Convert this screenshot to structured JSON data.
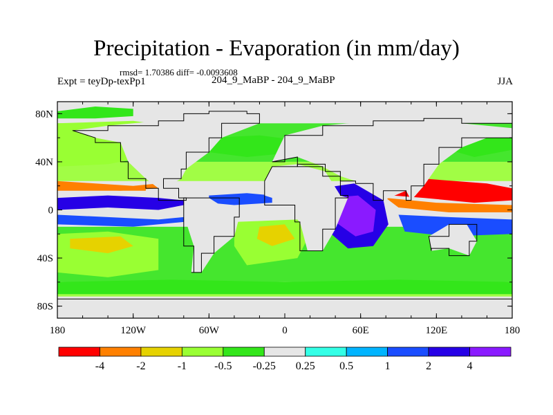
{
  "header": {
    "title": "Precipitation - Evaporation (in mm/day)",
    "stats": "rmsd= 1.70386 diff= -0.0093608",
    "expt": "Expt = teyDp-texPp1",
    "runs": "204_9_MaBP - 204_9_MaBP",
    "season": "JJA"
  },
  "chart_data": {
    "type": "heatmap",
    "title": "Precipitation - Evaporation (in mm/day)",
    "xlabel": "",
    "ylabel": "",
    "x_ticks": [
      "180",
      "120W",
      "60W",
      "0",
      "60E",
      "120E",
      "180"
    ],
    "x_tick_values": [
      -180,
      -120,
      -60,
      0,
      60,
      120,
      180
    ],
    "y_ticks": [
      "80N",
      "40N",
      "0",
      "40S",
      "80S"
    ],
    "y_tick_values": [
      80,
      40,
      0,
      -40,
      -80
    ],
    "xlim": [
      -180,
      180
    ],
    "ylim": [
      -90,
      90
    ],
    "colorbar": {
      "labels": [
        "-4",
        "-2",
        "-1",
        "-0.5",
        "-0.25",
        "0.25",
        "0.5",
        "1",
        "2",
        "4"
      ],
      "levels": [
        -4,
        -2,
        -1,
        -0.5,
        -0.25,
        0.25,
        0.5,
        1,
        2,
        4
      ],
      "colors": [
        "#ff0000",
        "#ff8000",
        "#e6d200",
        "#99ff33",
        "#33e61a",
        "#e6e6e6",
        "#33ffe6",
        "#00b4ff",
        "#1a4dff",
        "#2600e6",
        "#8a1aff"
      ]
    },
    "regions": [
      {
        "name": "north-pacific-dry",
        "class": 3,
        "pts": [
          [
            -180,
            72
          ],
          [
            -120,
            74
          ],
          [
            -92,
            70
          ],
          [
            -92,
            50
          ],
          [
            -110,
            44
          ],
          [
            -140,
            38
          ],
          [
            -180,
            36
          ]
        ]
      },
      {
        "name": "arctic-moist",
        "class": 4,
        "pts": [
          [
            -180,
            82
          ],
          [
            -150,
            86
          ],
          [
            -120,
            84
          ],
          [
            -120,
            78
          ],
          [
            -150,
            76
          ],
          [
            -180,
            76
          ]
        ]
      },
      {
        "name": "pacific-itcz",
        "class": 9,
        "pts": [
          [
            -180,
            10
          ],
          [
            -140,
            12
          ],
          [
            -100,
            10
          ],
          [
            -80,
            8
          ],
          [
            -80,
            4
          ],
          [
            -100,
            0
          ],
          [
            -140,
            2
          ],
          [
            -180,
            0
          ]
        ]
      },
      {
        "name": "pacific-subtrop-north-dry",
        "class": 1,
        "pts": [
          [
            -180,
            24
          ],
          [
            -150,
            22
          ],
          [
            -120,
            20
          ],
          [
            -100,
            22
          ],
          [
            -100,
            18
          ],
          [
            -130,
            16
          ],
          [
            -180,
            18
          ]
        ]
      },
      {
        "name": "pacific-north-orange",
        "class": 1,
        "pts": [
          [
            -180,
            22
          ],
          [
            -150,
            20
          ],
          [
            -110,
            18
          ],
          [
            -110,
            16
          ],
          [
            -150,
            16
          ],
          [
            -180,
            16
          ]
        ]
      },
      {
        "name": "pacific-cold-tongue",
        "class": 8,
        "pts": [
          [
            -180,
            -4
          ],
          [
            -140,
            -6
          ],
          [
            -100,
            -8
          ],
          [
            -80,
            -6
          ],
          [
            -80,
            -10
          ],
          [
            -120,
            -14
          ],
          [
            -180,
            -12
          ]
        ]
      },
      {
        "name": "south-pacific-dry",
        "class": 3,
        "pts": [
          [
            -180,
            -20
          ],
          [
            -140,
            -18
          ],
          [
            -100,
            -24
          ],
          [
            -100,
            -50
          ],
          [
            -140,
            -56
          ],
          [
            -180,
            -52
          ]
        ]
      },
      {
        "name": "south-pacific-yellow",
        "class": 2,
        "pts": [
          [
            -170,
            -24
          ],
          [
            -130,
            -22
          ],
          [
            -120,
            -30
          ],
          [
            -140,
            -36
          ],
          [
            -170,
            -32
          ]
        ]
      },
      {
        "name": "atlantic-itcz",
        "class": 8,
        "pts": [
          [
            -60,
            12
          ],
          [
            -30,
            14
          ],
          [
            -10,
            12
          ],
          [
            -10,
            6
          ],
          [
            -40,
            4
          ],
          [
            -60,
            6
          ]
        ]
      },
      {
        "name": "south-atlantic-dry",
        "class": 3,
        "pts": [
          [
            -40,
            -10
          ],
          [
            10,
            -8
          ],
          [
            20,
            -20
          ],
          [
            10,
            -40
          ],
          [
            -30,
            -46
          ],
          [
            -40,
            -30
          ]
        ]
      },
      {
        "name": "south-atlantic-yellow",
        "class": 2,
        "pts": [
          [
            -20,
            -14
          ],
          [
            0,
            -12
          ],
          [
            8,
            -24
          ],
          [
            -10,
            -30
          ],
          [
            -22,
            -24
          ]
        ]
      },
      {
        "name": "indian-ocean-wet",
        "class": 9,
        "pts": [
          [
            28,
            18
          ],
          [
            55,
            22
          ],
          [
            78,
            8
          ],
          [
            82,
            -12
          ],
          [
            70,
            -30
          ],
          [
            50,
            -32
          ],
          [
            28,
            -12
          ]
        ]
      },
      {
        "name": "indian-ocean-core",
        "class": 10,
        "pts": [
          [
            36,
            10
          ],
          [
            58,
            12
          ],
          [
            72,
            0
          ],
          [
            70,
            -18
          ],
          [
            56,
            -22
          ],
          [
            40,
            -10
          ]
        ]
      },
      {
        "name": "west-pacific-dry",
        "class": 0,
        "pts": [
          [
            80,
            22
          ],
          [
            110,
            26
          ],
          [
            160,
            22
          ],
          [
            180,
            18
          ],
          [
            180,
            8
          ],
          [
            150,
            6
          ],
          [
            110,
            10
          ],
          [
            85,
            12
          ]
        ]
      },
      {
        "name": "west-pacific-orange",
        "class": 1,
        "pts": [
          [
            80,
            10
          ],
          [
            120,
            6
          ],
          [
            180,
            4
          ],
          [
            180,
            -2
          ],
          [
            130,
            -2
          ],
          [
            90,
            2
          ]
        ]
      },
      {
        "name": "west-pacific-warm-pool",
        "class": 8,
        "pts": [
          [
            90,
            -4
          ],
          [
            130,
            -6
          ],
          [
            180,
            -8
          ],
          [
            180,
            -20
          ],
          [
            130,
            -22
          ],
          [
            95,
            -18
          ]
        ]
      },
      {
        "name": "southern-ocean-wet",
        "class": 4,
        "pts": [
          [
            -180,
            -60
          ],
          [
            -90,
            -58
          ],
          [
            0,
            -60
          ],
          [
            90,
            -58
          ],
          [
            180,
            -60
          ],
          [
            180,
            -70
          ],
          [
            -180,
            -70
          ]
        ]
      },
      {
        "name": "north-atlantic-moist",
        "class": 4,
        "pts": [
          [
            -60,
            60
          ],
          [
            -20,
            62
          ],
          [
            10,
            58
          ],
          [
            10,
            48
          ],
          [
            -30,
            44
          ],
          [
            -60,
            48
          ]
        ]
      },
      {
        "name": "north-pacific-moist-east",
        "class": 4,
        "pts": [
          [
            120,
            66
          ],
          [
            160,
            70
          ],
          [
            180,
            66
          ],
          [
            180,
            50
          ],
          [
            150,
            44
          ],
          [
            130,
            50
          ]
        ]
      }
    ]
  }
}
